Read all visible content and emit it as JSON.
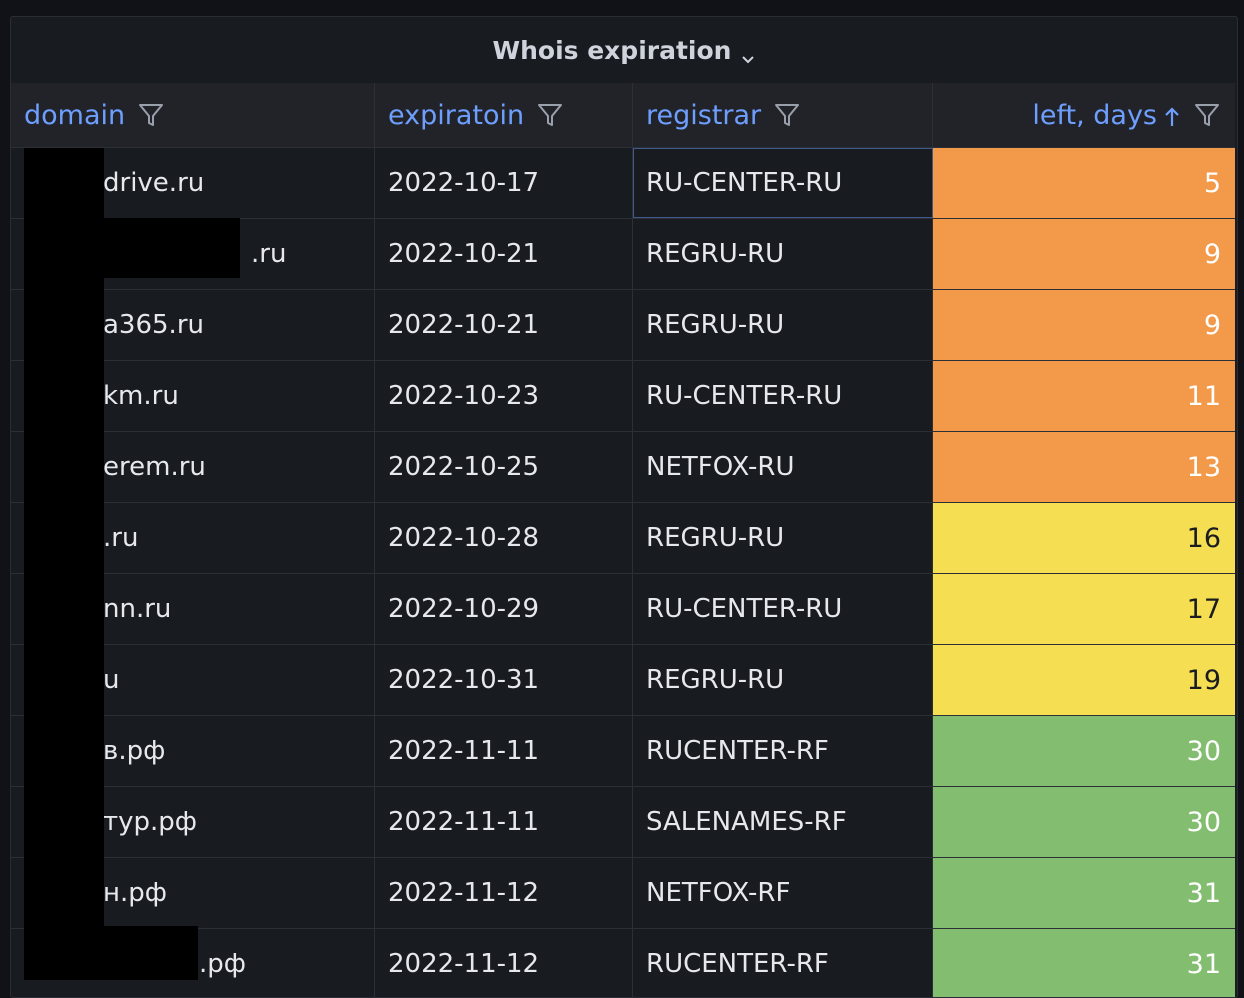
{
  "panel": {
    "title": "Whois expiration"
  },
  "columns": {
    "domain": "domain",
    "expiration": "expiratoin",
    "registrar": "registrar",
    "left_days": "left, days"
  },
  "colors": {
    "orange": "#f2994a",
    "yellow": "#f5de52",
    "green": "#83bd6f",
    "header_text": "#6e9fff"
  },
  "rows": [
    {
      "domain": "drive.ru",
      "expiration": "2022-10-17",
      "registrar": "RU-CENTER-RU",
      "left": "5",
      "status": "orange"
    },
    {
      "domain": ".ru",
      "expiration": "2022-10-21",
      "registrar": "REGRU-RU",
      "left": "9",
      "status": "orange"
    },
    {
      "domain": "a365.ru",
      "expiration": "2022-10-21",
      "registrar": "REGRU-RU",
      "left": "9",
      "status": "orange"
    },
    {
      "domain": "km.ru",
      "expiration": "2022-10-23",
      "registrar": "RU-CENTER-RU",
      "left": "11",
      "status": "orange"
    },
    {
      "domain": "erem.ru",
      "expiration": "2022-10-25",
      "registrar": "NETFOX-RU",
      "left": "13",
      "status": "orange"
    },
    {
      "domain": ".ru",
      "expiration": "2022-10-28",
      "registrar": "REGRU-RU",
      "left": "16",
      "status": "yellow"
    },
    {
      "domain": "nn.ru",
      "expiration": "2022-10-29",
      "registrar": "RU-CENTER-RU",
      "left": "17",
      "status": "yellow"
    },
    {
      "domain": "u",
      "expiration": "2022-10-31",
      "registrar": "REGRU-RU",
      "left": "19",
      "status": "yellow"
    },
    {
      "domain": "в.рф",
      "expiration": "2022-11-11",
      "registrar": "RUCENTER-RF",
      "left": "30",
      "status": "green"
    },
    {
      "domain": "тур.рф",
      "expiration": "2022-11-11",
      "registrar": "SALENAMES-RF",
      "left": "30",
      "status": "green"
    },
    {
      "domain": "н.рф",
      "expiration": "2022-11-12",
      "registrar": "NETFOX-RF",
      "left": "31",
      "status": "green"
    },
    {
      "domain": ".рф",
      "expiration": "2022-11-12",
      "registrar": "RUCENTER-RF",
      "left": "31",
      "status": "green"
    }
  ]
}
